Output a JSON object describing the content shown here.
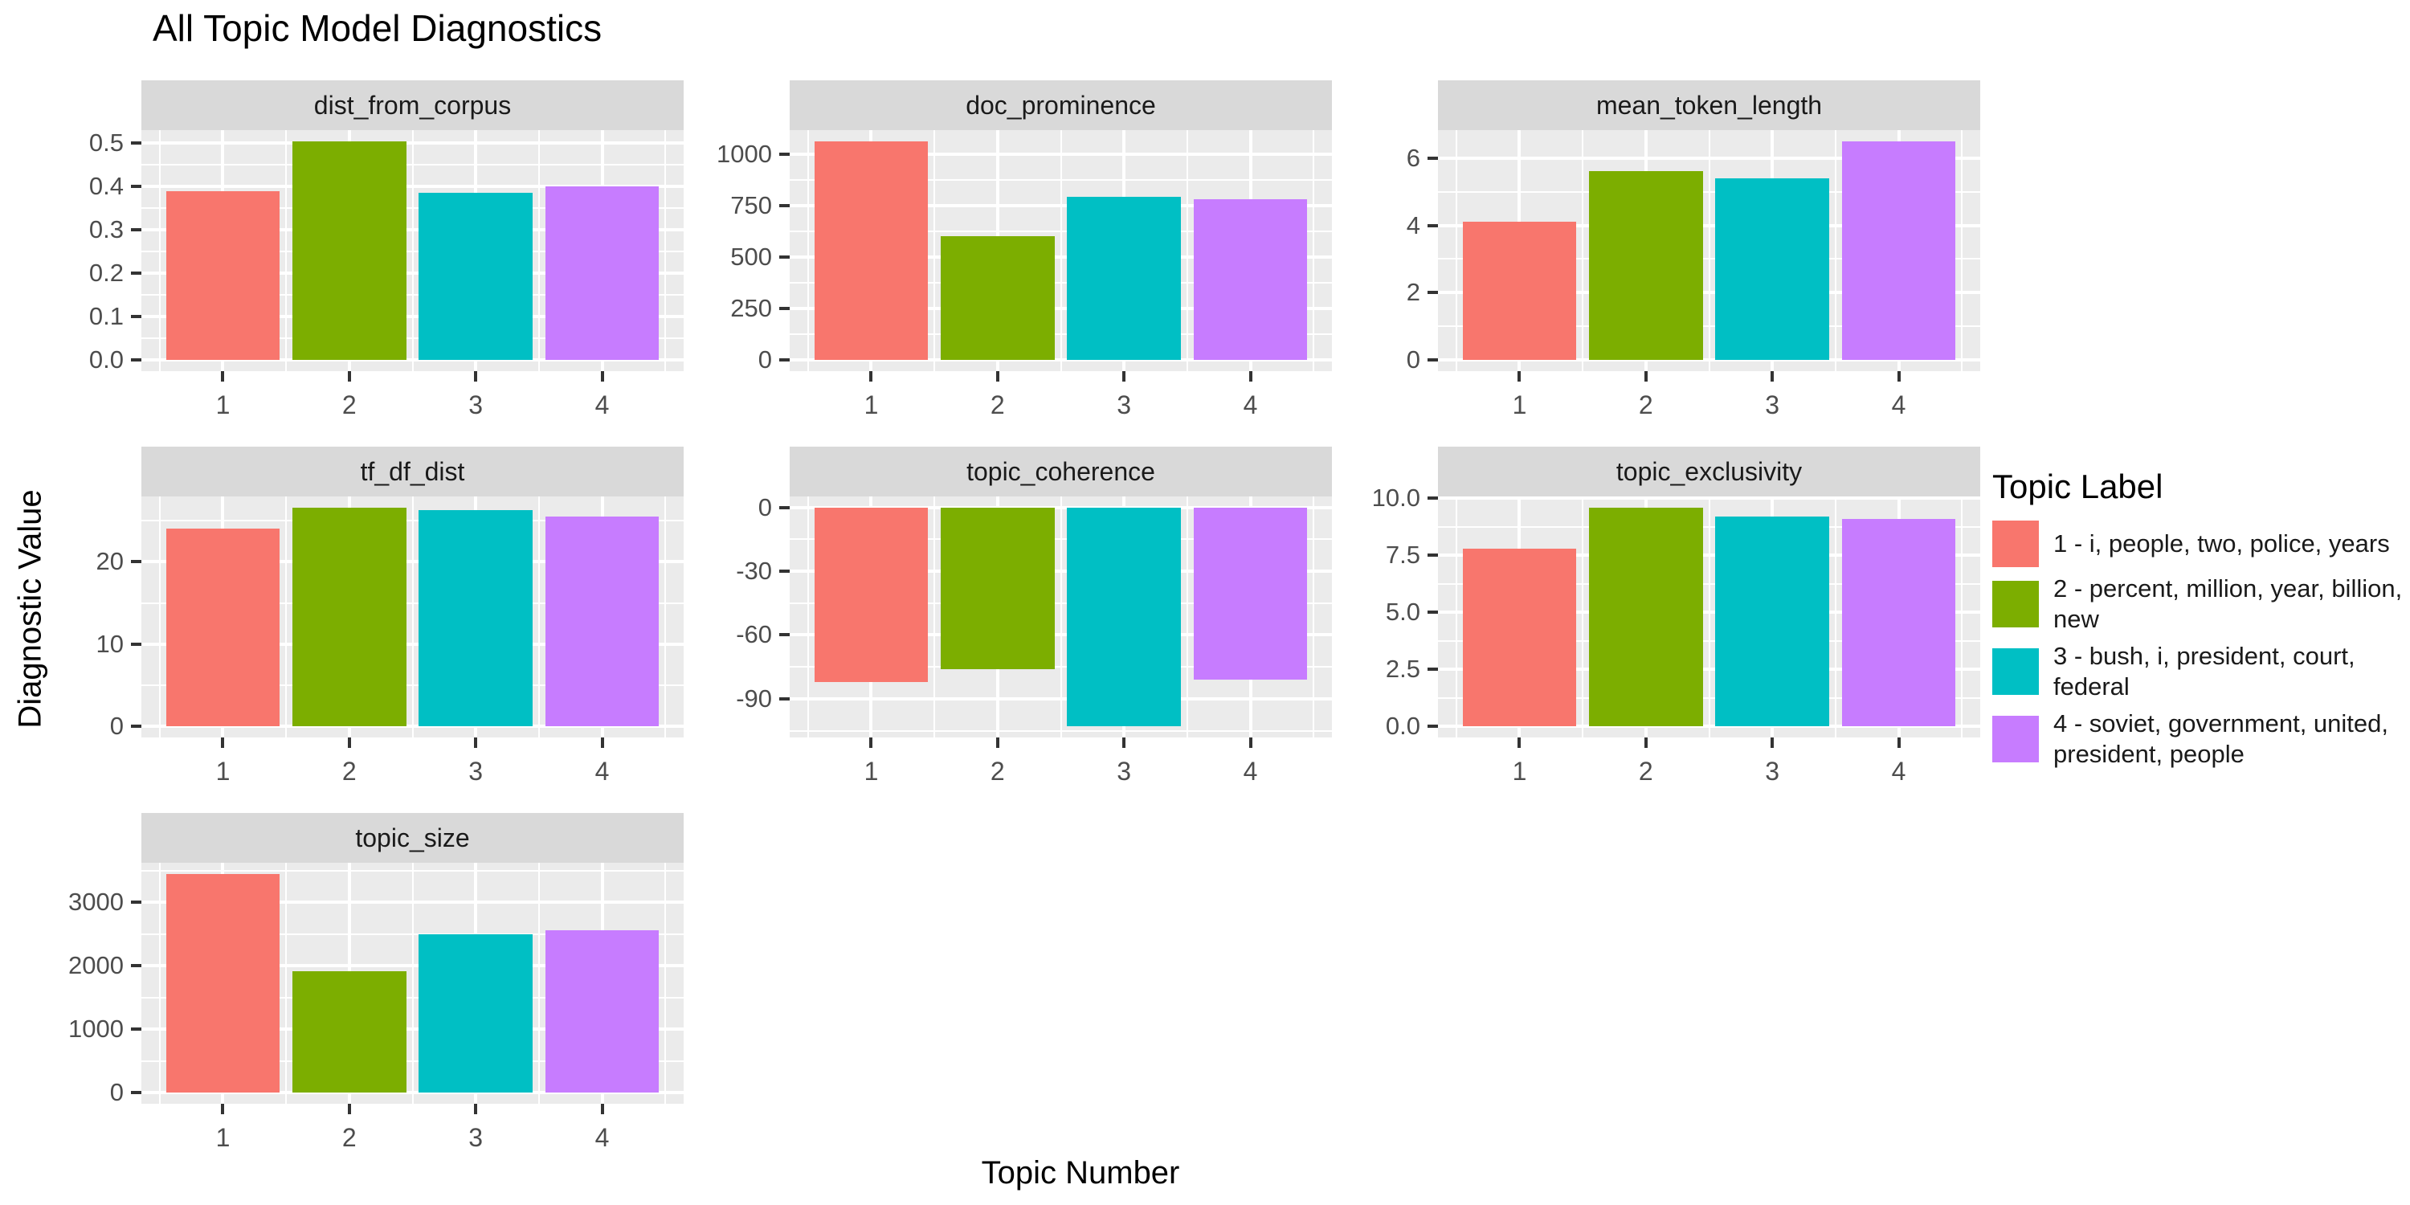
{
  "title": "All Topic Model Diagnostics",
  "axes": {
    "x_label": "Topic Number",
    "y_label": "Diagnostic Value"
  },
  "legend": {
    "title": "Topic Label",
    "items": [
      {
        "label": "1 - i, people, two, police, years",
        "color": "#F8766D"
      },
      {
        "label": "2 - percent, million, year, billion, new",
        "color": "#7CAE00"
      },
      {
        "label": "3 - bush, i, president, court, federal",
        "color": "#00BFC4"
      },
      {
        "label": "4 - soviet, government, united, president, people",
        "color": "#C77CFF"
      }
    ]
  },
  "colors": {
    "topic_1": "#F8766D",
    "topic_2": "#7CAE00",
    "topic_3": "#00BFC4",
    "topic_4": "#C77CFF",
    "panel_background": "#EBEBEB",
    "strip_background": "#D9D9D9",
    "gridline": "#FFFFFF",
    "tick_text": "#4D4D4D"
  },
  "chart_data": {
    "type": "bar",
    "faceted": true,
    "facet_layout": "3 columns, 7 panels",
    "grid": "on",
    "legend_position": "right",
    "categories": [
      "1",
      "2",
      "3",
      "4"
    ],
    "series_colors": [
      "#F8766D",
      "#7CAE00",
      "#00BFC4",
      "#C77CFF"
    ],
    "xlabel": "Topic Number",
    "ylabel": "Diagnostic Value",
    "facets": [
      {
        "name": "dist_from_corpus",
        "values": [
          0.39,
          0.505,
          0.385,
          0.4
        ],
        "ticks": [
          0.0,
          0.1,
          0.2,
          0.3,
          0.4,
          0.5
        ],
        "tick_labels": [
          "0.0",
          "0.1",
          "0.2",
          "0.3",
          "0.4",
          "0.5"
        ],
        "ylim": [
          -0.0253,
          0.5303
        ]
      },
      {
        "name": "doc_prominence",
        "values": [
          1060,
          600,
          790,
          780
        ],
        "ticks": [
          0,
          250,
          500,
          750,
          1000
        ],
        "tick_labels": [
          "0",
          "250",
          "500",
          "750",
          "1000"
        ],
        "ylim": [
          -56,
          1116
        ]
      },
      {
        "name": "mean_token_length",
        "values": [
          4.1,
          5.6,
          5.4,
          6.5
        ],
        "ticks": [
          0,
          2,
          4,
          6
        ],
        "tick_labels": [
          "0",
          "2",
          "4",
          "6"
        ],
        "ylim": [
          -0.325,
          6.825
        ]
      },
      {
        "name": "tf_df_dist",
        "values": [
          24,
          26.6,
          26.3,
          25.5
        ],
        "ticks": [
          0,
          10,
          20
        ],
        "tick_labels": [
          "0",
          "10",
          "20"
        ],
        "ylim": [
          -1.33,
          27.93
        ]
      },
      {
        "name": "topic_coherence",
        "values": [
          -82,
          -76,
          -103,
          -81
        ],
        "ticks": [
          -90,
          -60,
          -30,
          0
        ],
        "tick_labels": [
          "-90",
          "-60",
          "-30",
          "0"
        ],
        "ylim": [
          -108.2,
          5.15
        ]
      },
      {
        "name": "topic_exclusivity",
        "values": [
          7.8,
          9.6,
          9.2,
          9.1
        ],
        "ticks": [
          0.0,
          2.5,
          5.0,
          7.5,
          10.0
        ],
        "tick_labels": [
          "0.0",
          "2.5",
          "5.0",
          "7.5",
          "10.0"
        ],
        "ylim": [
          -0.48,
          10.08
        ]
      },
      {
        "name": "topic_size",
        "values": [
          3450,
          1920,
          2500,
          2560
        ],
        "ticks": [
          0,
          1000,
          2000,
          3000
        ],
        "tick_labels": [
          "0",
          "1000",
          "2000",
          "3000"
        ],
        "ylim": [
          -172.5,
          3622.5
        ]
      }
    ]
  }
}
